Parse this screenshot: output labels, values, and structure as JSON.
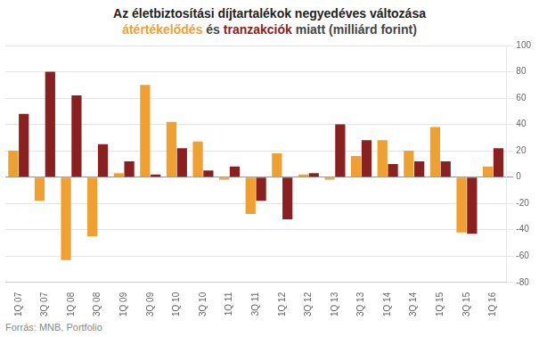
{
  "chart_data": {
    "type": "bar",
    "title": "Az életbiztosítási díjtartalékok negyedéves változása",
    "subtitle": "átértékelődés és tranzakciók miatt (milliárd forint)",
    "annotations": [
      "Forrás: MNB, Portfolio"
    ],
    "categories": [
      "1Q 07",
      "3Q 07",
      "1Q 08",
      "3Q 08",
      "1Q 09",
      "3Q 09",
      "1Q 10",
      "3Q 10",
      "1Q 11",
      "3Q 11",
      "1Q 12",
      "3Q 12",
      "1Q 13",
      "3Q 13",
      "1Q 14",
      "3Q 14",
      "1Q 15",
      "3Q 15",
      "1Q 16"
    ],
    "series": [
      {
        "name": "átértékelődés",
        "color": "#F0A030",
        "values": [
          20,
          -18,
          -63,
          -45,
          3,
          70,
          42,
          27,
          -2,
          -28,
          18,
          2,
          -2,
          16,
          28,
          20,
          38,
          -42,
          8
        ]
      },
      {
        "name": "tranzakciók",
        "color": "#8B2020",
        "values": [
          48,
          80,
          62,
          25,
          12,
          2,
          22,
          5,
          8,
          -18,
          -32,
          3,
          40,
          28,
          10,
          12,
          12,
          -43,
          22
        ]
      }
    ],
    "ylim": [
      -80,
      100
    ],
    "yticks": [
      -80,
      -60,
      -40,
      -20,
      0,
      20,
      40,
      60,
      80,
      100
    ],
    "grid": true
  }
}
